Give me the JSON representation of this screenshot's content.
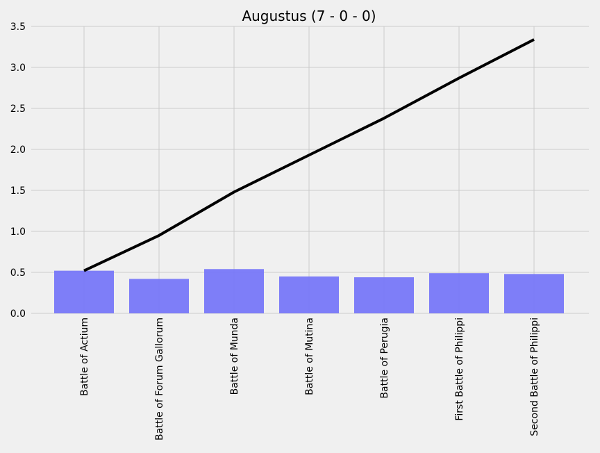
{
  "chart_data": {
    "type": "bar",
    "title": "Augustus (7 - 0 - 0)",
    "xlabel": "",
    "ylabel": "",
    "ylim": [
      0,
      3.5
    ],
    "yticks": [
      "0.0",
      "0.5",
      "1.0",
      "1.5",
      "2.0",
      "2.5",
      "3.0",
      "3.5"
    ],
    "grid": true,
    "categories": [
      "Battle of Actium",
      "Battle of Forum Gallorum",
      "Battle of Munda",
      "Battle of Mutina",
      "Battle of Perugia",
      "First Battle of Philippi",
      "Second Battle of Philippi"
    ],
    "series": [
      {
        "kind": "bar",
        "color": "#7777f8",
        "values": [
          0.52,
          0.42,
          0.54,
          0.45,
          0.44,
          0.49,
          0.48
        ]
      },
      {
        "kind": "line",
        "color": "#000000",
        "values": [
          0.52,
          0.95,
          1.48,
          1.93,
          2.38,
          2.87,
          3.34
        ]
      }
    ]
  }
}
